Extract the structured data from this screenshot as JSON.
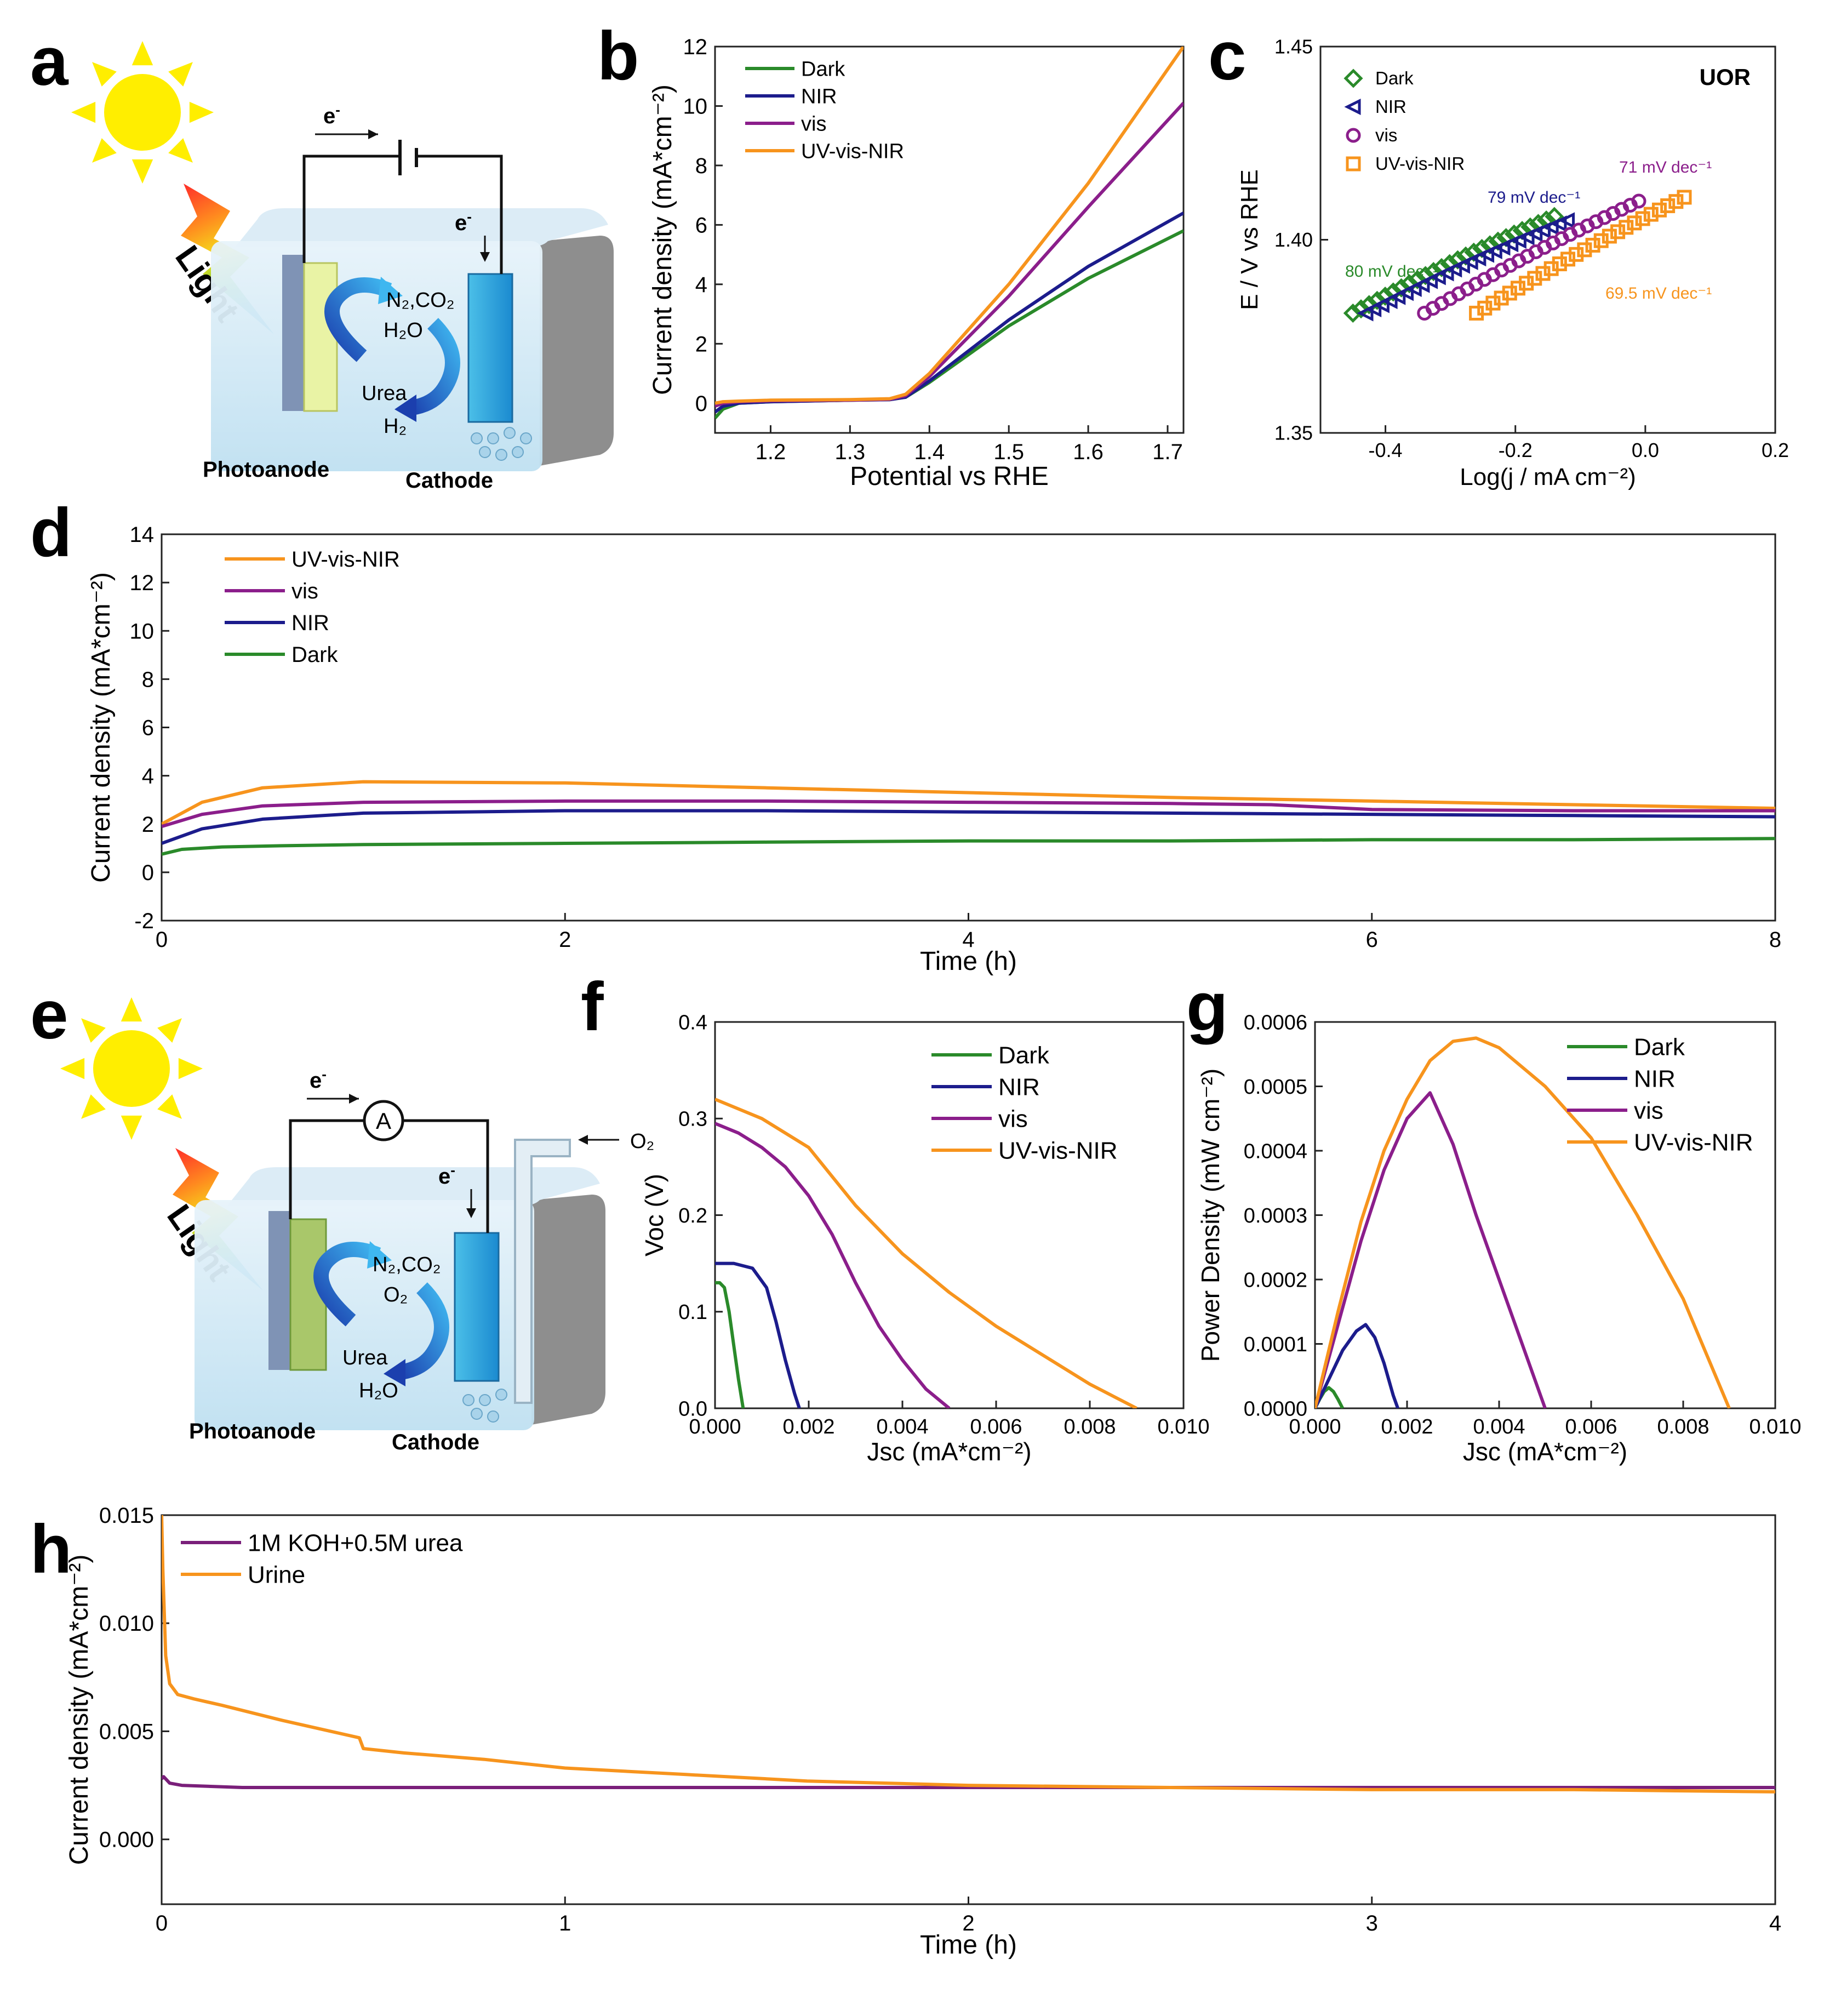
{
  "panel_labels": {
    "a": "a",
    "b": "b",
    "c": "c",
    "d": "d",
    "e": "e",
    "f": "f",
    "g": "g",
    "h": "h"
  },
  "colors": {
    "Dark": "#2a8a2a",
    "NIR": "#1c1c8c",
    "vis": "#8b1e8b",
    "UV-vis-NIR": "#f7941d",
    "KOH": "#7a1f7a",
    "Urine": "#f7941d"
  },
  "schematic_a": {
    "light": "Light",
    "electron_top": "e",
    "electron_side": "e",
    "product": "N₂,CO₂",
    "water": "H₂O",
    "urea": "Urea",
    "hydrogen": "H₂",
    "photoanode": "Photoanode",
    "cathode": "Cathode"
  },
  "schematic_e": {
    "light": "Light",
    "electron_top": "e",
    "electron_side": "e",
    "ammeter": "A",
    "oxygen_in": "O₂",
    "product": "N₂,CO₂",
    "oxygen": "O₂",
    "urea": "Urea",
    "water": "H₂O",
    "photoanode": "Photoanode",
    "cathode": "Cathode"
  },
  "chart_data": [
    {
      "id": "b",
      "type": "line",
      "xlabel": "Potential vs RHE",
      "ylabel": "Current density (mA*cm⁻²)",
      "xlim": [
        1.13,
        1.72
      ],
      "ylim": [
        -1,
        12
      ],
      "xticks": [
        1.2,
        1.3,
        1.4,
        1.5,
        1.6,
        1.7
      ],
      "xtick_labels": [
        "1.2",
        "1.3",
        "1.4",
        "1.5",
        "1.6",
        "1.7"
      ],
      "yticks": [
        0,
        2,
        4,
        6,
        8,
        10,
        12
      ],
      "ytick_labels": [
        "0",
        "2",
        "4",
        "6",
        "8",
        "10",
        "12"
      ],
      "legend": [
        "Dark",
        "NIR",
        "vis",
        "UV-vis-NIR"
      ],
      "series": [
        {
          "name": "Dark",
          "x": [
            1.13,
            1.14,
            1.16,
            1.2,
            1.3,
            1.35,
            1.37,
            1.4,
            1.5,
            1.6,
            1.72
          ],
          "y": [
            -0.5,
            -0.2,
            0.0,
            0.05,
            0.1,
            0.12,
            0.2,
            0.7,
            2.6,
            4.2,
            5.8
          ]
        },
        {
          "name": "NIR",
          "x": [
            1.13,
            1.14,
            1.16,
            1.2,
            1.3,
            1.35,
            1.37,
            1.4,
            1.5,
            1.6,
            1.72
          ],
          "y": [
            -0.3,
            -0.1,
            0.0,
            0.05,
            0.1,
            0.12,
            0.2,
            0.75,
            2.8,
            4.6,
            6.4
          ]
        },
        {
          "name": "vis",
          "x": [
            1.13,
            1.14,
            1.16,
            1.2,
            1.3,
            1.35,
            1.37,
            1.4,
            1.5,
            1.6,
            1.72
          ],
          "y": [
            -0.1,
            0.0,
            0.05,
            0.08,
            0.1,
            0.13,
            0.25,
            0.9,
            3.6,
            6.6,
            10.1
          ]
        },
        {
          "name": "UV-vis-NIR",
          "x": [
            1.13,
            1.14,
            1.16,
            1.2,
            1.3,
            1.35,
            1.37,
            1.4,
            1.5,
            1.6,
            1.72
          ],
          "y": [
            0.0,
            0.05,
            0.07,
            0.1,
            0.12,
            0.15,
            0.3,
            1.0,
            4.0,
            7.4,
            12.0
          ]
        }
      ]
    },
    {
      "id": "c",
      "type": "scatter",
      "xlabel": "Log(j / mA cm⁻²)",
      "ylabel": "E / V vs RHE",
      "annotation": "UOR",
      "xlim": [
        -0.5,
        0.2
      ],
      "ylim": [
        1.35,
        1.45
      ],
      "xticks": [
        -0.4,
        -0.2,
        0.0,
        0.2
      ],
      "xtick_labels": [
        "-0.4",
        "-0.2",
        "0.0",
        "0.2"
      ],
      "yticks": [
        1.35,
        1.4,
        1.45
      ],
      "ytick_labels": [
        "1.35",
        "1.40",
        "1.45"
      ],
      "legend": [
        "Dark",
        "NIR",
        "vis",
        "UV-vis-NIR"
      ],
      "series": [
        {
          "name": "Dark",
          "marker": "diamond",
          "x_start": -0.45,
          "x_end": -0.14,
          "y_start": 1.381,
          "y_end": 1.406,
          "count": 26,
          "slope_label": "80 mV dec⁻¹"
        },
        {
          "name": "NIR",
          "marker": "triangle",
          "x_start": -0.43,
          "x_end": -0.12,
          "y_start": 1.381,
          "y_end": 1.405,
          "count": 26,
          "slope_label": "79 mV dec⁻¹"
        },
        {
          "name": "vis",
          "marker": "circle",
          "x_start": -0.34,
          "x_end": -0.01,
          "y_start": 1.381,
          "y_end": 1.41,
          "count": 26,
          "slope_label": "71 mV dec⁻¹"
        },
        {
          "name": "UV-vis-NIR",
          "marker": "square",
          "x_start": -0.26,
          "x_end": 0.06,
          "y_start": 1.381,
          "y_end": 1.411,
          "count": 26,
          "slope_label": "69.5 mV dec⁻¹"
        }
      ]
    },
    {
      "id": "d",
      "type": "line",
      "xlabel": "Time (h)",
      "ylabel": "Current density (mA*cm⁻²)",
      "xlim": [
        0,
        8
      ],
      "ylim": [
        -2,
        14
      ],
      "xticks": [
        0,
        2,
        4,
        6,
        8
      ],
      "xtick_labels": [
        "0",
        "2",
        "4",
        "6",
        "8"
      ],
      "yticks": [
        -2,
        0,
        2,
        4,
        6,
        8,
        10,
        12,
        14
      ],
      "ytick_labels": [
        "-2",
        "0",
        "2",
        "4",
        "6",
        "8",
        "10",
        "12",
        "14"
      ],
      "legend": [
        "UV-vis-NIR",
        "vis",
        "NIR",
        "Dark"
      ],
      "series": [
        {
          "name": "UV-vis-NIR",
          "x": [
            0,
            0.2,
            0.5,
            1,
            2,
            3,
            4,
            5,
            6,
            7,
            8
          ],
          "y": [
            2.0,
            2.9,
            3.5,
            3.75,
            3.7,
            3.5,
            3.3,
            3.1,
            2.95,
            2.8,
            2.65
          ]
        },
        {
          "name": "vis",
          "x": [
            0,
            0.2,
            0.5,
            1,
            2,
            3,
            4,
            5,
            5.5,
            6,
            7,
            8
          ],
          "y": [
            1.9,
            2.4,
            2.75,
            2.9,
            2.95,
            2.95,
            2.9,
            2.85,
            2.8,
            2.6,
            2.55,
            2.55
          ]
        },
        {
          "name": "NIR",
          "x": [
            0,
            0.2,
            0.5,
            1,
            2,
            3,
            4,
            5,
            6,
            7,
            8
          ],
          "y": [
            1.2,
            1.8,
            2.2,
            2.45,
            2.55,
            2.55,
            2.5,
            2.45,
            2.4,
            2.35,
            2.3
          ]
        },
        {
          "name": "Dark",
          "x": [
            0,
            0.1,
            0.3,
            0.6,
            1,
            2,
            3,
            4,
            5,
            6,
            7,
            8
          ],
          "y": [
            0.75,
            0.95,
            1.05,
            1.1,
            1.15,
            1.2,
            1.25,
            1.3,
            1.3,
            1.35,
            1.35,
            1.4
          ]
        }
      ]
    },
    {
      "id": "f",
      "type": "line",
      "xlabel": "Jsc (mA*cm⁻²)",
      "ylabel": "Voc (V)",
      "xlim": [
        0,
        0.01
      ],
      "ylim": [
        0,
        0.4
      ],
      "xticks": [
        0,
        0.002,
        0.004,
        0.006,
        0.008,
        0.01
      ],
      "xtick_labels": [
        "0.000",
        "0.002",
        "0.004",
        "0.006",
        "0.008",
        "0.010"
      ],
      "yticks": [
        0,
        0.1,
        0.2,
        0.3,
        0.4
      ],
      "ytick_labels": [
        "0.0",
        "0.1",
        "0.2",
        "0.3",
        "0.4"
      ],
      "legend": [
        "Dark",
        "NIR",
        "vis",
        "UV-vis-NIR"
      ],
      "series": [
        {
          "name": "Dark",
          "x": [
            0,
            0.0001,
            0.0002,
            0.0003,
            0.0004,
            0.0005,
            0.0006
          ],
          "y": [
            0.13,
            0.13,
            0.125,
            0.1,
            0.065,
            0.03,
            0.0
          ]
        },
        {
          "name": "NIR",
          "x": [
            0,
            0.0004,
            0.0008,
            0.0011,
            0.0013,
            0.0015,
            0.0017,
            0.0018
          ],
          "y": [
            0.15,
            0.15,
            0.145,
            0.125,
            0.09,
            0.05,
            0.015,
            0.0
          ]
        },
        {
          "name": "vis",
          "x": [
            0,
            0.0005,
            0.001,
            0.0015,
            0.002,
            0.0025,
            0.003,
            0.0035,
            0.004,
            0.0045,
            0.005
          ],
          "y": [
            0.295,
            0.285,
            0.27,
            0.25,
            0.22,
            0.18,
            0.13,
            0.085,
            0.05,
            0.02,
            0.0
          ]
        },
        {
          "name": "UV-vis-NIR",
          "x": [
            0,
            0.001,
            0.002,
            0.003,
            0.004,
            0.005,
            0.006,
            0.007,
            0.008,
            0.009
          ],
          "y": [
            0.32,
            0.3,
            0.27,
            0.21,
            0.16,
            0.12,
            0.085,
            0.055,
            0.025,
            0.0
          ]
        }
      ]
    },
    {
      "id": "g",
      "type": "line",
      "xlabel": "Jsc (mA*cm⁻²)",
      "ylabel": "Power Density (mW cm⁻²)",
      "xlim": [
        0,
        0.01
      ],
      "ylim": [
        0,
        0.0006
      ],
      "xticks": [
        0,
        0.002,
        0.004,
        0.006,
        0.008,
        0.01
      ],
      "xtick_labels": [
        "0.000",
        "0.002",
        "0.004",
        "0.006",
        "0.008",
        "0.010"
      ],
      "yticks": [
        0,
        0.0001,
        0.0002,
        0.0003,
        0.0004,
        0.0005,
        0.0006
      ],
      "ytick_labels": [
        "0.0000",
        "0.0001",
        "0.0002",
        "0.0003",
        "0.0004",
        "0.0005",
        "0.0006"
      ],
      "legend": [
        "Dark",
        "NIR",
        "vis",
        "UV-vis-NIR"
      ],
      "series": [
        {
          "name": "Dark",
          "x": [
            0,
            0.0001,
            0.0002,
            0.0003,
            0.0004,
            0.0005,
            0.0006
          ],
          "y": [
            0,
            1.4e-05,
            2.6e-05,
            3.2e-05,
            2.6e-05,
            1.4e-05,
            0
          ]
        },
        {
          "name": "NIR",
          "x": [
            0,
            0.0003,
            0.0006,
            0.0009,
            0.0011,
            0.0013,
            0.0015,
            0.0017,
            0.0018
          ],
          "y": [
            0,
            4.5e-05,
            9e-05,
            0.00012,
            0.00013,
            0.00011,
            7e-05,
            2e-05,
            0
          ]
        },
        {
          "name": "vis",
          "x": [
            0,
            0.0005,
            0.001,
            0.0015,
            0.002,
            0.0025,
            0.003,
            0.0035,
            0.004,
            0.0045,
            0.005
          ],
          "y": [
            0,
            0.00013,
            0.00026,
            0.00037,
            0.00045,
            0.00049,
            0.00041,
            0.0003,
            0.0002,
            0.0001,
            0
          ]
        },
        {
          "name": "UV-vis-NIR",
          "x": [
            0,
            0.0005,
            0.001,
            0.0015,
            0.002,
            0.0025,
            0.003,
            0.0035,
            0.004,
            0.005,
            0.006,
            0.007,
            0.008,
            0.009
          ],
          "y": [
            0,
            0.00015,
            0.00029,
            0.0004,
            0.00048,
            0.00054,
            0.00057,
            0.000575,
            0.00056,
            0.0005,
            0.00042,
            0.0003,
            0.00017,
            0
          ]
        }
      ]
    },
    {
      "id": "h",
      "type": "line",
      "xlabel": "Time (h)",
      "ylabel": "Current density (mA*cm⁻²)",
      "xlim": [
        0,
        4
      ],
      "ylim": [
        -0.003,
        0.015
      ],
      "xticks": [
        0,
        1,
        2,
        3,
        4
      ],
      "xtick_labels": [
        "0",
        "1",
        "2",
        "3",
        "4"
      ],
      "yticks": [
        0,
        0.005,
        0.01,
        0.015
      ],
      "ytick_labels": [
        "0.000",
        "0.005",
        "0.010",
        "0.015"
      ],
      "legend": [
        "1M KOH+0.5M urea",
        "Urine"
      ],
      "series": [
        {
          "name": "1M KOH+0.5M urea",
          "x": [
            0,
            0.005,
            0.02,
            0.05,
            0.2,
            0.5,
            1,
            1.5,
            2,
            2.5,
            3,
            3.5,
            4
          ],
          "y": [
            0.0028,
            0.0029,
            0.0026,
            0.0025,
            0.0024,
            0.0024,
            0.0024,
            0.0024,
            0.0024,
            0.0024,
            0.0024,
            0.0024,
            0.0024
          ]
        },
        {
          "name": "Urine",
          "x": [
            0,
            0.003,
            0.01,
            0.02,
            0.04,
            0.08,
            0.15,
            0.3,
            0.49,
            0.5,
            0.6,
            0.8,
            1,
            1.3,
            1.6,
            2,
            2.5,
            3,
            3.5,
            4
          ],
          "y": [
            0.015,
            0.0125,
            0.0085,
            0.0072,
            0.0067,
            0.0065,
            0.0062,
            0.0055,
            0.0047,
            0.0042,
            0.004,
            0.0037,
            0.0033,
            0.003,
            0.0027,
            0.0025,
            0.0024,
            0.0023,
            0.0023,
            0.0022
          ]
        }
      ]
    }
  ]
}
